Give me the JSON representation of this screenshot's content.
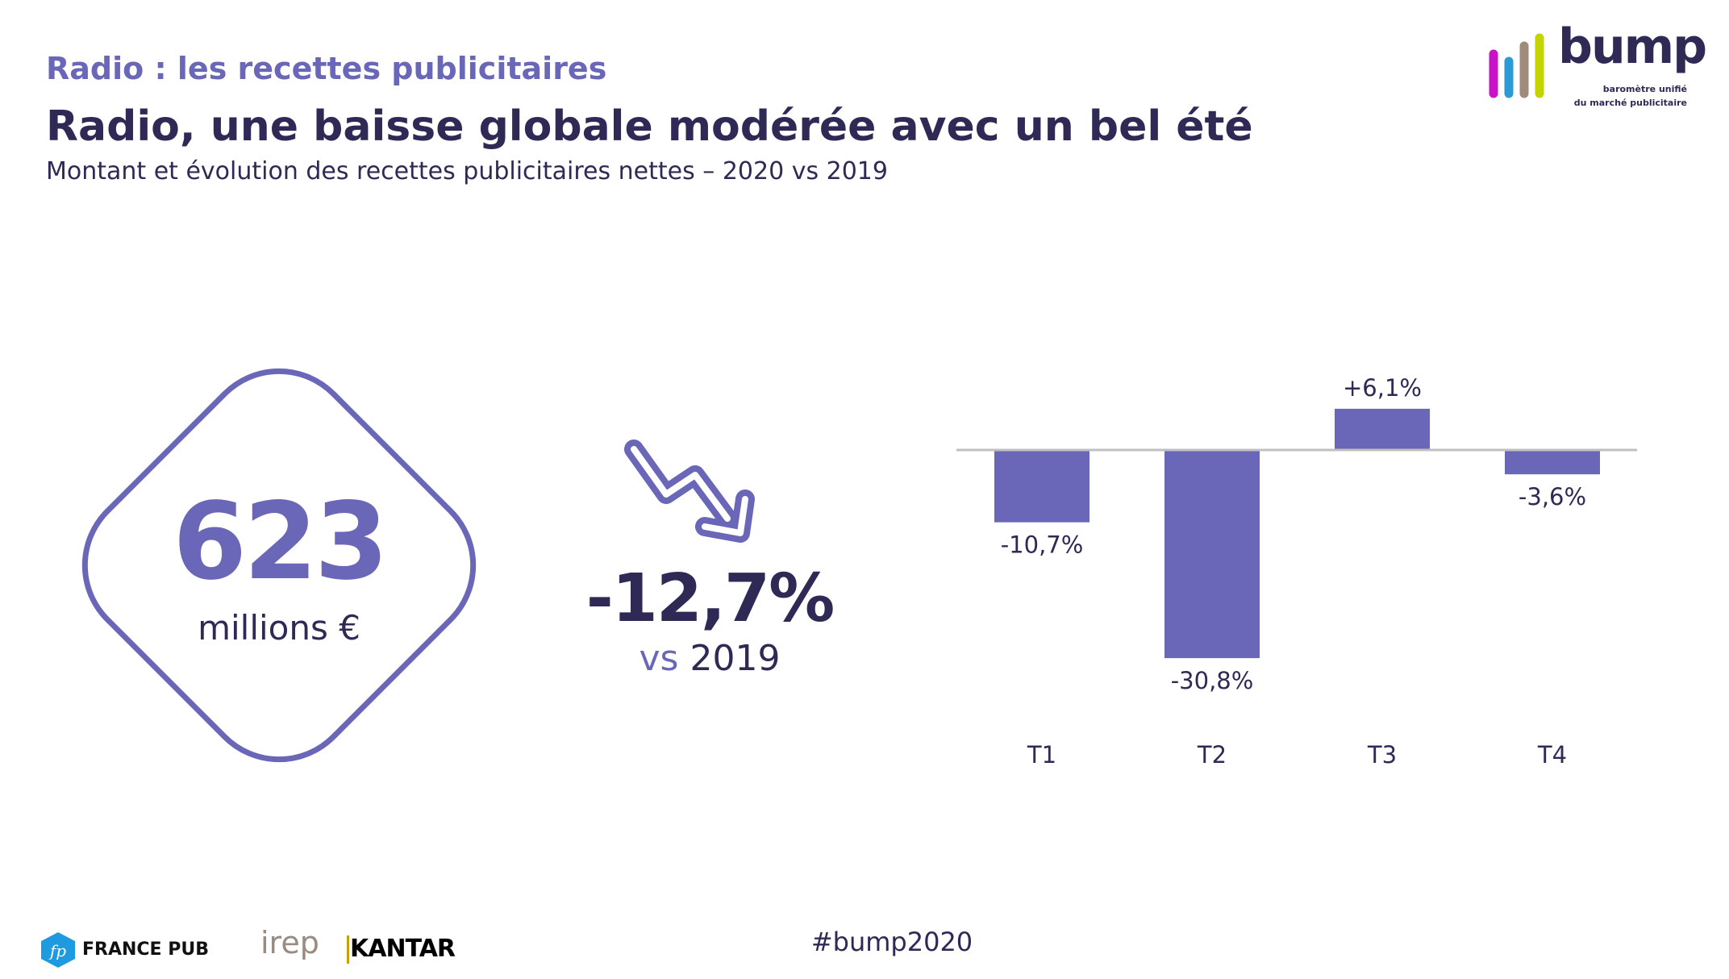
{
  "header": {
    "kicker": "Radio : les recettes publicitaires",
    "title": "Radio, une baisse globale modérée avec un bel été",
    "subtitle": "Montant et évolution des recettes publicitaires nettes – 2020 vs 2019"
  },
  "logo": {
    "name": "bump",
    "tagline_1": "baromètre unifié",
    "tagline_2": "du marché publicitaire",
    "bar_colors": [
      "#c913c9",
      "#2a9bd6",
      "#a08a7a",
      "#c3d400"
    ],
    "text_color": "#2e2a55"
  },
  "kpi": {
    "amount": "623",
    "amount_unit": "millions €",
    "evolution": "-12,7%",
    "vs_word": "vs",
    "vs_year": "2019",
    "trend_icon": "trend-down-arrow"
  },
  "chart_data": {
    "type": "bar",
    "categories": [
      "T1",
      "T2",
      "T3",
      "T4"
    ],
    "values": [
      -10.7,
      -30.8,
      6.1,
      -3.6
    ],
    "data_labels": [
      "-10,7%",
      "-30,8%",
      "+6,1%",
      "-3,6%"
    ],
    "bar_color": "#6a67b8",
    "baseline_color": "#c0c0c0",
    "grid": false
  },
  "footer": {
    "hashtag": "#bump2020",
    "partners": [
      "FRANCE PUB",
      "irep",
      "KANTAR"
    ]
  },
  "colors": {
    "accent": "#6a67b8",
    "dark": "#2e2a55"
  }
}
